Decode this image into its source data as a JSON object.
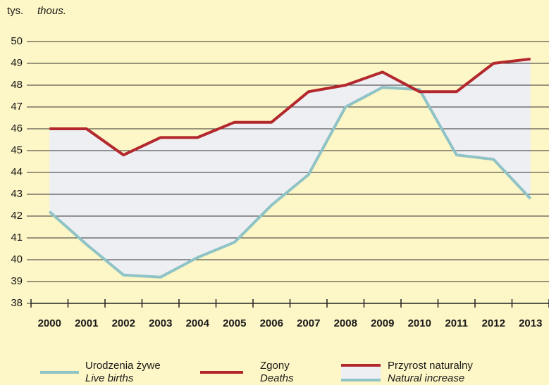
{
  "chart_data": {
    "type": "line",
    "unit_label": "tys.",
    "unit_label_en": "thous.",
    "categories": [
      "2000",
      "2001",
      "2002",
      "2003",
      "2004",
      "2005",
      "2006",
      "2007",
      "2008",
      "2009",
      "2010",
      "2011",
      "2012",
      "2013"
    ],
    "series": [
      {
        "name": "Urodzenia żywe",
        "name_en": "Live births",
        "color": "#8fc3c6",
        "values": [
          42.2,
          40.7,
          39.3,
          39.2,
          40.1,
          40.8,
          42.5,
          43.9,
          47.0,
          47.9,
          47.8,
          44.8,
          44.6,
          42.8
        ]
      },
      {
        "name": "Zgony",
        "name_en": "Deaths",
        "color": "#b3282d",
        "values": [
          46.0,
          46.0,
          44.8,
          45.6,
          45.6,
          46.3,
          46.3,
          47.7,
          48.0,
          48.6,
          47.7,
          47.7,
          49.0,
          49.2
        ]
      }
    ],
    "area_legend": {
      "name": "Przyrost naturalny",
      "name_en": "Natural increase",
      "color": "#eeeff3"
    },
    "ylim": [
      38,
      50
    ],
    "yticks": [
      38,
      39,
      40,
      41,
      42,
      43,
      44,
      45,
      46,
      47,
      48,
      49,
      50
    ],
    "grid": true
  }
}
